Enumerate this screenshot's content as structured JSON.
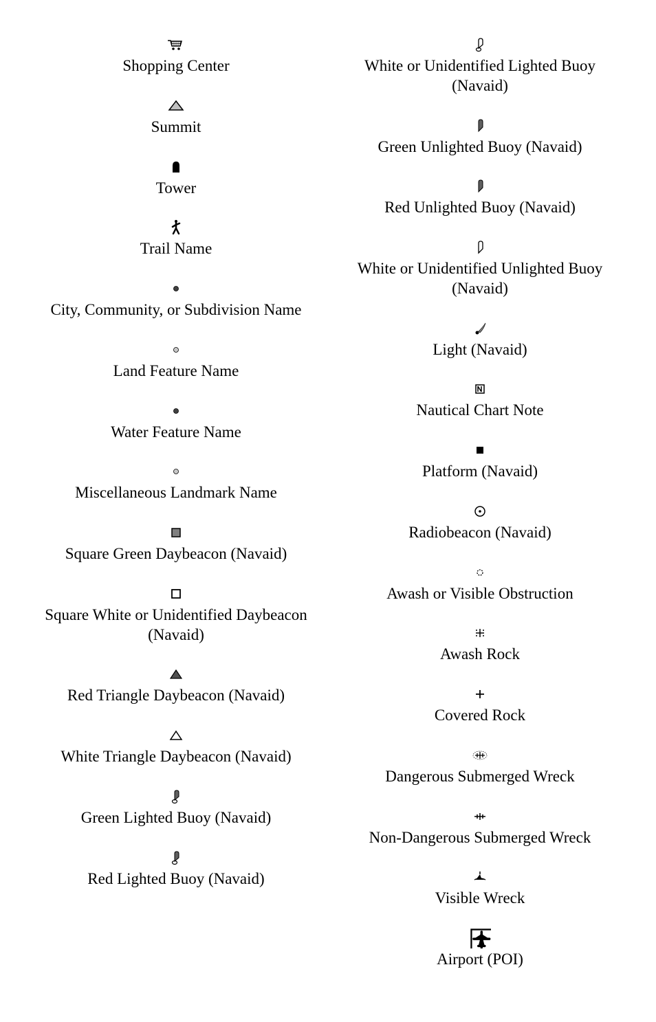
{
  "font_family": "Georgia, serif",
  "label_fontsize": 23,
  "icon_color": "#000000",
  "background": "#ffffff",
  "left": [
    {
      "icon": "cart",
      "label": "Shopping Center"
    },
    {
      "icon": "summit",
      "label": "Summit"
    },
    {
      "icon": "tower",
      "label": "Tower"
    },
    {
      "icon": "hiker",
      "label": "Trail Name"
    },
    {
      "icon": "dot-dark",
      "label": "City, Community, or Subdivision Name"
    },
    {
      "icon": "dot-gray",
      "label": "Land Feature Name"
    },
    {
      "icon": "dot-dark",
      "label": "Water Feature Name"
    },
    {
      "icon": "dot-gray",
      "label": "Miscellaneous Landmark Name"
    },
    {
      "icon": "sq-fill",
      "label": "Square Green Daybeacon (Navaid)"
    },
    {
      "icon": "sq-empty",
      "label": "Square White or Unidentified Daybeacon (Navaid)"
    },
    {
      "icon": "tri-fill",
      "label": "Red Triangle Daybeacon (Navaid)"
    },
    {
      "icon": "tri-empty",
      "label": "White Triangle Daybeacon (Navaid)"
    },
    {
      "icon": "buoy-lit",
      "label": "Green Lighted Buoy (Navaid)"
    },
    {
      "icon": "buoy-lit",
      "label": "Red Lighted Buoy (Navaid)"
    }
  ],
  "right": [
    {
      "icon": "buoy-lit-open",
      "label": "White or Unidentified Lighted Buoy (Navaid)"
    },
    {
      "icon": "buoy-unlit",
      "label": "Green Unlighted Buoy (Navaid)"
    },
    {
      "icon": "buoy-unlit",
      "label": "Red Unlighted Buoy (Navaid)"
    },
    {
      "icon": "buoy-unlit-open",
      "label": "White or Unidentified Unlighted Buoy (Navaid)"
    },
    {
      "icon": "light",
      "label": "Light (Navaid)"
    },
    {
      "icon": "note",
      "label": "Nautical Chart Note"
    },
    {
      "icon": "platform",
      "label": "Platform (Navaid)"
    },
    {
      "icon": "radiobeacon",
      "label": "Radiobeacon (Navaid)"
    },
    {
      "icon": "awash-obs",
      "label": "Awash or Visible Obstruction"
    },
    {
      "icon": "awash-rock",
      "label": "Awash Rock"
    },
    {
      "icon": "covered-rock",
      "label": "Covered Rock"
    },
    {
      "icon": "dang-wreck",
      "label": "Dangerous Submerged Wreck"
    },
    {
      "icon": "nondang-wreck",
      "label": "Non-Dangerous Submerged Wreck"
    },
    {
      "icon": "vis-wreck",
      "label": "Visible Wreck"
    },
    {
      "icon": "airport",
      "label": "Airport (POI)"
    }
  ]
}
